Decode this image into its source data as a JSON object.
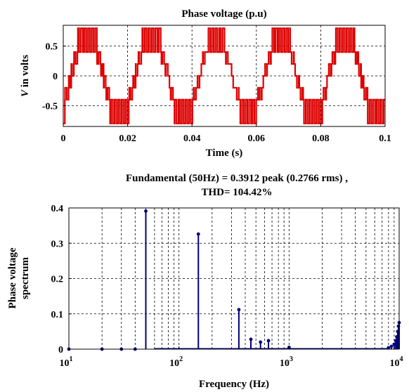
{
  "chart_data": [
    {
      "type": "line",
      "title": "Phase voltage (p.u)",
      "xlabel": "Time (s)",
      "ylabel_italic": "V",
      "ylabel_rest": " in volts",
      "xlim": [
        0,
        0.1
      ],
      "ylim": [
        -0.85,
        0.85
      ],
      "xticks": [
        0,
        0.02,
        0.04,
        0.06,
        0.08,
        0.1
      ],
      "xtick_labels": [
        "0",
        "0.02",
        "0.04",
        "0.06",
        "0.08",
        "0.1"
      ],
      "yticks": [
        0.5,
        0,
        -0.5
      ],
      "ytick_labels": [
        "0.5",
        "0",
        "-0.5"
      ],
      "grid": true,
      "color": "#dd0000",
      "period": 0.02,
      "levels": [
        0,
        0.2,
        0.4,
        0.8
      ],
      "series": [
        {
          "values_note": "",
          "t": [
            0.0,
            0.0015,
            0.003,
            0.005,
            0.0065,
            0.008,
            0.012,
            0.0135,
            0.015,
            0.017,
            0.0185,
            0.02
          ],
          "v": [
            -0.2,
            0.2,
            0.0,
            0.2,
            0.4,
            0.8,
            0.4,
            0.2,
            0.0,
            -0.2,
            -0.4,
            -0.8
          ]
        }
      ]
    },
    {
      "type": "bar",
      "title_line1": "Fundamental (50Hz) = 0.3912 peak (0.2766 rms) ,",
      "title_line2": "THD= 104.42%",
      "xlabel": "Frequency (Hz)",
      "ylabel_line1": "Phase voltage",
      "ylabel_line2": "spectrum",
      "xscale": "log",
      "xlim": [
        10,
        10000
      ],
      "ylim": [
        0,
        0.4
      ],
      "yticks": [
        0,
        0.1,
        0.2,
        0.3,
        0.4
      ],
      "ytick_labels": [
        "0",
        "0.1",
        "0.2",
        "0.3",
        "0.4"
      ],
      "xtick_bases": [
        "10",
        "10",
        "10",
        "10"
      ],
      "xtick_exps": [
        "1",
        "2",
        "3",
        "4"
      ],
      "grid": true,
      "color": "#000080",
      "frequencies": [
        10,
        20,
        30,
        40,
        50,
        150,
        350,
        450,
        550,
        650,
        1000,
        8000,
        8500,
        9000,
        9300,
        9500,
        9700,
        9850,
        10000
      ],
      "values": [
        0.0,
        0.0,
        0.0,
        0.0,
        0.3912,
        0.326,
        0.112,
        0.028,
        0.02,
        0.024,
        0.005,
        0.004,
        0.008,
        0.014,
        0.024,
        0.035,
        0.05,
        0.065,
        0.075
      ]
    }
  ]
}
